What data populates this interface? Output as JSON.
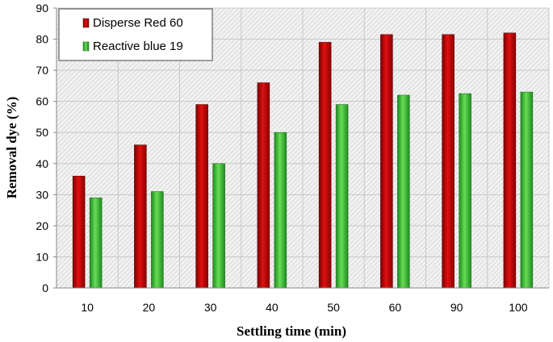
{
  "chart_data": {
    "type": "bar",
    "title": "",
    "xlabel": "Settling time (min)",
    "ylabel": "Removal dye (%)",
    "categories": [
      "10",
      "20",
      "30",
      "40",
      "50",
      "60",
      "90",
      "100"
    ],
    "yticks": [
      "0",
      "10",
      "20",
      "30",
      "40",
      "50",
      "60",
      "70",
      "80",
      "90"
    ],
    "ylim": [
      0,
      90
    ],
    "grid": true,
    "legend_position": "top-left",
    "series": [
      {
        "name": "Disperse Red 60",
        "color": "#c00000",
        "values": [
          36,
          46,
          59,
          66,
          79,
          81.5,
          81.5,
          82
        ]
      },
      {
        "name": "Reactive blue 19",
        "color": "#3cc43c",
        "values": [
          29,
          31,
          40,
          50,
          59,
          62,
          62.5,
          63
        ]
      }
    ]
  }
}
